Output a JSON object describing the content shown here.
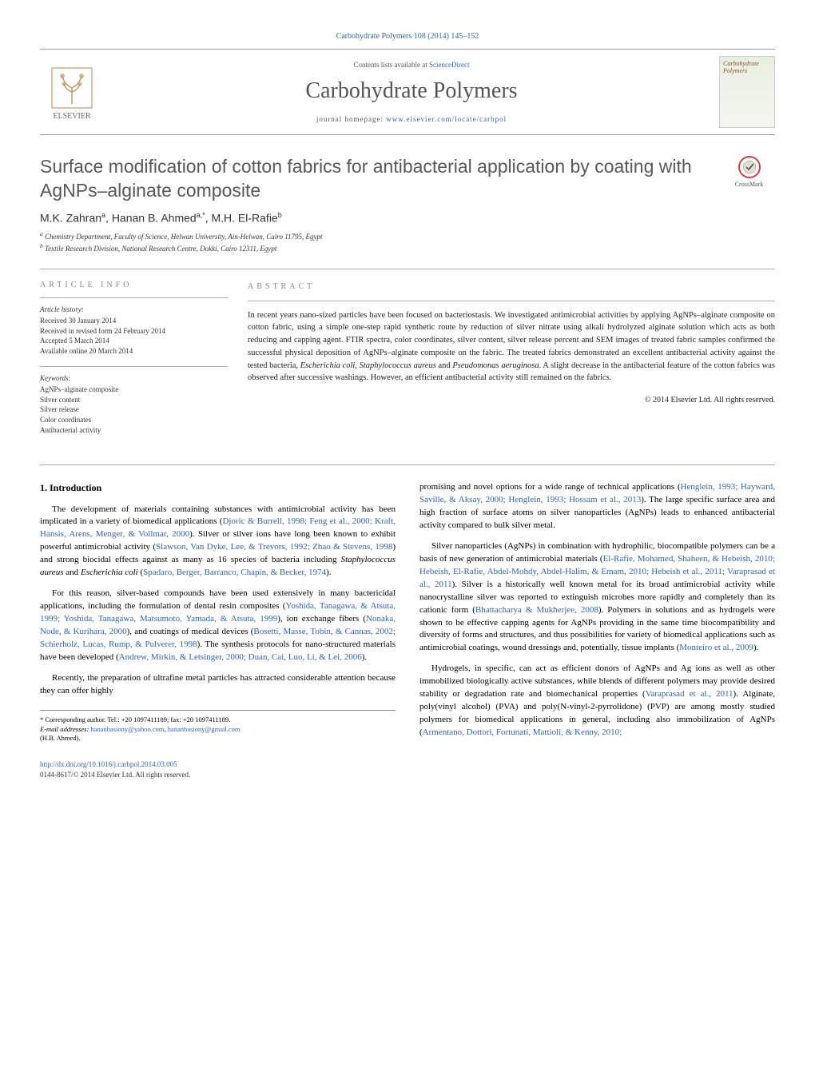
{
  "journal_ref": "Carbohydrate Polymers 108 (2014) 145–152",
  "header": {
    "contents_prefix": "Contents lists available at ",
    "contents_link": "ScienceDirect",
    "journal_name": "Carbohydrate Polymers",
    "homepage_prefix": "journal homepage: ",
    "homepage_url": "www.elsevier.com/locate/carbpol",
    "publisher_name": "ELSEVIER",
    "cover_text": "Carbohydrate Polymers"
  },
  "title": "Surface modification of cotton fabrics for antibacterial application by coating with AgNPs–alginate composite",
  "crossmark_label": "CrossMark",
  "authors_html": "M.K. Zahran<sup>a</sup>, Hanan B. Ahmed<sup>a,*</sup>, M.H. El-Rafie<sup>b</sup>",
  "affiliations": {
    "a": "Chemistry Department, Faculty of Science, Helwan University, Ain-Helwan, Cairo 11795, Egypt",
    "b": "Textile Research Division, National Research Centre, Dokki, Cairo 12311, Egypt"
  },
  "article_info": {
    "heading": "ARTICLE INFO",
    "history_label": "Article history:",
    "history": [
      "Received 30 January 2014",
      "Received in revised form 24 February 2014",
      "Accepted 5 March 2014",
      "Available online 20 March 2014"
    ],
    "keywords_label": "Keywords:",
    "keywords": [
      "AgNPs–alginate composite",
      "Silver content",
      "Silver release",
      "Color coordinates",
      "Antibacterial activity"
    ]
  },
  "abstract": {
    "heading": "ABSTRACT",
    "text": "In recent years nano-sized particles have been focused on bacteriostasis. We investigated antimicrobial activities by applying AgNPs–alginate composite on cotton fabric, using a simple one-step rapid synthetic route by reduction of silver nitrate using alkali hydrolyzed alginate solution which acts as both reducing and capping agent. FTIR spectra, color coordinates, silver content, silver release percent and SEM images of treated fabric samples confirmed the successful physical deposition of AgNPs–alginate composite on the fabric. The treated fabrics demonstrated an excellent antibacterial activity against the tested bacteria, Escherichia coli, Staphylococcus aureus and Pseudomonas aeruginosa. A slight decrease in the antibacterial feature of the cotton fabrics was observed after successive washings. However, an efficient antibacterial activity still remained on the fabrics.",
    "copyright": "© 2014 Elsevier Ltd. All rights reserved."
  },
  "body": {
    "section_num": "1.",
    "section_title": "Introduction",
    "left_paragraphs": [
      "The development of materials containing substances with antimicrobial activity has been implicated in a variety of biomedical applications (<span class='cite'>Djoric & Burrell, 1998; Feng et al., 2000; Kraft, Hansis, Arens, Menger, & Vollmar, 2000</span>). Silver or silver ions have long been known to exhibit powerful antimicrobial activity (<span class='cite'>Slawson, Van Dyke, Lee, & Trevors, 1992; Zhao & Stevens, 1998</span>) and strong biocidal effects against as many as 16 species of bacteria including <span class='species'>Staphylococcus aureus</span> and <span class='species'>Escherichia coli</span> (<span class='cite'>Spadaro, Berger, Barranco, Chapin, & Becker, 1974</span>).",
      "For this reason, silver-based compounds have been used extensively in many bactericidal applications, including the formulation of dental resin composites (<span class='cite'>Yoshida, Tanagawa, & Atsuta, 1999; Yoshida, Tanagawa, Matsumoto, Yamada, & Atsuta, 1999</span>), ion exchange fibers (<span class='cite'>Nonaka, Node, & Kurihara, 2000</span>), and coatings of medical devices (<span class='cite'>Bosetti, Masse, Tobin, & Cannas, 2002; Schierholz, Lucas, Rump, & Pulverer, 1998</span>). The synthesis protocols for nano-structured materials have been developed (<span class='cite'>Andrew, Mirkin, & Letsinger, 2000; Duan, Cai, Luo, Li, & Lei, 2006</span>).",
      "Recently, the preparation of ultrafine metal particles has attracted considerable attention because they can offer highly"
    ],
    "right_paragraphs": [
      "promising and novel options for a wide range of technical applications (<span class='cite'>Henglein, 1993; Hayward, Saville, & Aksay, 2000; Henglein, 1993; Hossam et al., 2013</span>). The large specific surface area and high fraction of surface atoms on silver nanoparticles (AgNPs) leads to enhanced antibacterial activity compared to bulk silver metal.",
      "Silver nanoparticles (AgNPs) in combination with hydrophilic, biocompatible polymers can be a basis of new generation of antimicrobial materials (<span class='cite'>El-Rafie, Mohamed, Shaheen, & Hebeish, 2010; Hebeish, El-Rafie, Abdel-Mohdy, Abdel-Halim, & Emam, 2010; Hebeish et al., 2011; Varaprasad et al., 2011</span>). Silver is a historically well known metal for its broad antimicrobial activity while nanocrystalline silver was reported to extinguish microbes more rapidly and completely than its cationic form (<span class='cite'>Bhattacharya & Mukherjee, 2008</span>). Polymers in solutions and as hydrogels were shown to be effective capping agents for AgNPs providing in the same time biocompatibility and diversity of forms and structures, and thus possibilities for variety of biomedical applications such as antimicrobial coatings, wound dressings and, potentially, tissue implants (<span class='cite'>Monteiro et al., 2009</span>).",
      "Hydrogels, in specific, can act as efficient donors of AgNPs and Ag ions as well as other immobilized biologically active substances, while blends of different polymers may provide desired stability or degradation rate and biomechanical properties (<span class='cite'>Varaprasad et al., 2011</span>). Alginate, poly(vinyl alcohol) (PVA) and poly(N-vinyl-2-pyrrolidone) (PVP) are among mostly studied polymers for biomedical applications in general, including also immobilization of AgNPs (<span class='cite'>Armentano, Dottori, Fortunati, Mattioli, & Kenny, 2010;</span>"
    ]
  },
  "footnotes": {
    "corresponding": "* Corresponding author. Tel.: +20 1097411189; fax: +20 1097411189.",
    "emails_label": "E-mail addresses:",
    "email1": "hananbasiony@yahoo.com",
    "email2": "hananbasiony@gmail.com",
    "email_person": "(H.B. Ahmed)."
  },
  "doi": "http://dx.doi.org/10.1016/j.carbpol.2014.03.005",
  "issn_line": "0144-8617/© 2014 Elsevier Ltd. All rights reserved.",
  "colors": {
    "link": "#3366aa",
    "heading_gray": "#888888",
    "title_gray": "#585858",
    "rule": "#999999"
  }
}
